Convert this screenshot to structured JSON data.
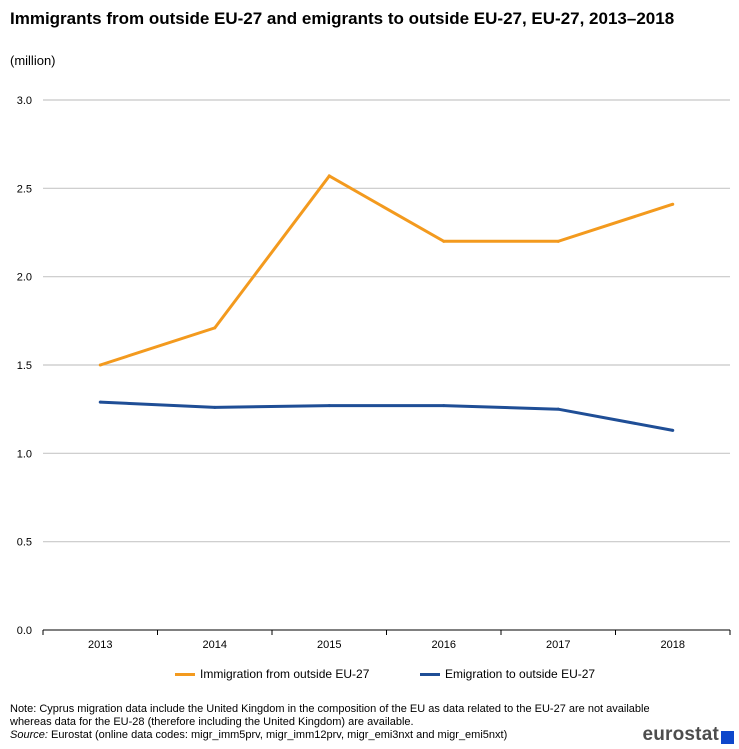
{
  "title": "Immigrants from outside EU-27 and emigrants to outside EU-27, EU-27, 2013–2018",
  "subtitle": "(million)",
  "chart_data": {
    "type": "line",
    "categories": [
      "2013",
      "2014",
      "2015",
      "2016",
      "2017",
      "2018"
    ],
    "ylim": [
      0.0,
      3.0
    ],
    "yticks": [
      "0.0",
      "0.5",
      "1.0",
      "1.5",
      "2.0",
      "2.5",
      "3.0"
    ],
    "grid": true,
    "legend_position": "bottom",
    "series": [
      {
        "name": "Immigration from outside EU-27",
        "color": "#f39a1e",
        "values": [
          1.5,
          1.71,
          2.57,
          2.2,
          2.2,
          2.41
        ]
      },
      {
        "name": "Emigration to outside EU-27",
        "color": "#1f4e96",
        "values": [
          1.29,
          1.26,
          1.27,
          1.27,
          1.25,
          1.13
        ]
      }
    ]
  },
  "legend": {
    "immigration": "Immigration from outside EU-27",
    "emigration": "Emigration to outside EU-27"
  },
  "note": {
    "text": "Note: Cyprus migration data include the United Kingdom in the composition of the EU as data related to the EU-27 are not available whereas data for the EU-28 (therefore including the United Kingdom) are available.",
    "source_label": "Source:",
    "source_text": " Eurostat (online data codes: migr_imm5prv, migr_imm12prv, migr_emi3nxt and migr_emi5nxt)"
  },
  "logo": {
    "text": "eurostat",
    "color": "#0e47cb"
  }
}
